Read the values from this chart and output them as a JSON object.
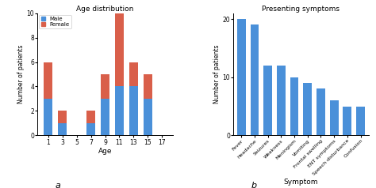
{
  "left_title": "Age distribution",
  "left_xlabel": "Age",
  "left_ylabel": "Number of patients",
  "ages": [
    1,
    3,
    5,
    7,
    9,
    11,
    13,
    15,
    17
  ],
  "male_values": [
    3,
    1,
    0,
    1,
    3,
    4,
    4,
    3,
    0
  ],
  "female_values": [
    3,
    1,
    0,
    1,
    2,
    6,
    2,
    2,
    0
  ],
  "male_color": "#4a90d9",
  "female_color": "#d95f4a",
  "left_ylim": [
    0,
    10
  ],
  "left_yticks": [
    0,
    2,
    4,
    6,
    8,
    10
  ],
  "right_title": "Presenting symptoms",
  "right_xlabel": "Symptom",
  "right_ylabel": "Number of patients",
  "symptoms": [
    "Fever",
    "Headache",
    "Seizures",
    "Weakness",
    "Meningism",
    "Vomiting",
    "Frontal swelling",
    "ENT symptoms",
    "Speech disturbance",
    "Confusion"
  ],
  "symptom_values": [
    20,
    19,
    12,
    12,
    10,
    9,
    8,
    6,
    5,
    5
  ],
  "symptom_color": "#4a90d9",
  "right_ylim": [
    0,
    21
  ],
  "right_yticks": [
    0,
    10,
    20
  ],
  "label_a": "a",
  "label_b": "b",
  "bg_color": "#ffffff"
}
